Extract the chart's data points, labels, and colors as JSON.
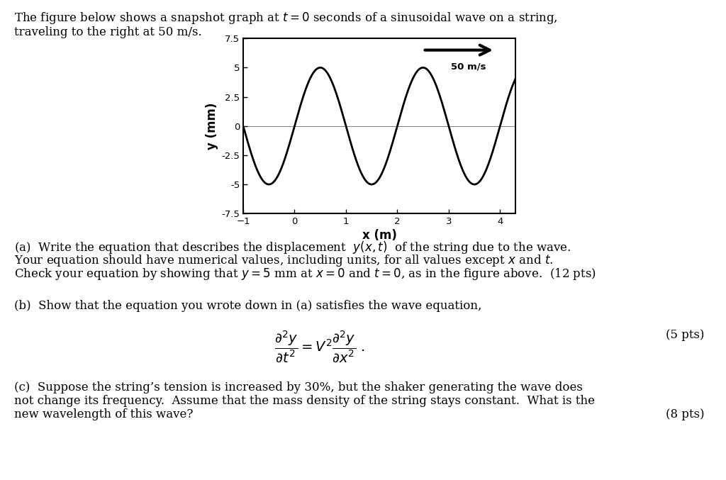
{
  "title_line1": "The figure below shows a snapshot graph at $t = 0$ seconds of a sinusoidal wave on a string,",
  "title_line2": "traveling to the right at 50 m/s.",
  "xlabel": "x (m)",
  "ylabel": "y (mm)",
  "xlim": [
    -1,
    4.3
  ],
  "ylim": [
    -7.5,
    7.5
  ],
  "xticks": [
    -1,
    0,
    1,
    2,
    3,
    4
  ],
  "yticks": [
    -7.5,
    -5,
    -2.5,
    0,
    2.5,
    5,
    7.5
  ],
  "ytick_labels": [
    "-7.5",
    "-5",
    "-2.5",
    "0",
    "2.5",
    "5",
    "7.5"
  ],
  "amplitude": 5,
  "wavelength": 2,
  "wave_color": "#000000",
  "bg_color": "#ffffff",
  "arrow_label": "50 m/s",
  "part_a_line1": "(a)  Write the equation that describes the displacement  $y(x,t)$  of the string due to the wave.",
  "part_a_line2": "Your equation should have numerical values, including units, for all values except $x$ and $t$.",
  "part_a_line3": "Check your equation by showing that $y = 5$ mm at $x = 0$ and $t = 0$, as in the figure above.  (12 pts)",
  "part_b_intro": "(b)  Show that the equation you wrote down in (a) satisfies the wave equation,",
  "part_b_pts": "(5 pts)",
  "part_c_line1": "(c)  Suppose the string’s tension is increased by 30%, but the shaker generating the wave does",
  "part_c_line2": "not change its frequency.  Assume that the mass density of the string stays constant.  What is the",
  "part_c_line3": "new wavelength of this wave?",
  "part_c_pts": "(8 pts)",
  "fontsize_body": 12,
  "fontsize_axis": 12
}
